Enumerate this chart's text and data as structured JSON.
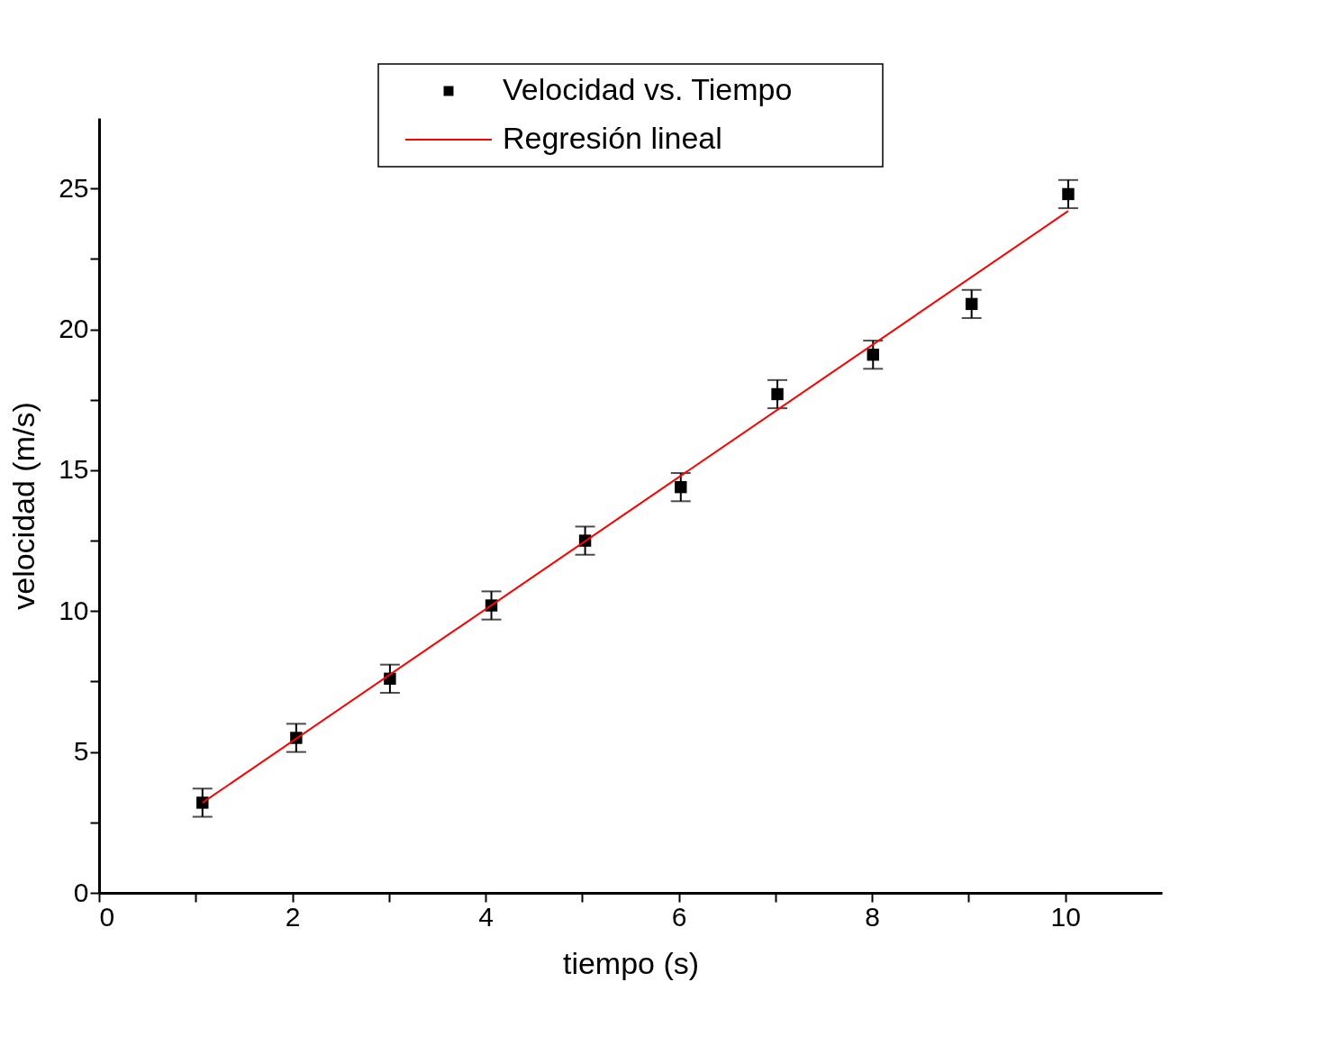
{
  "chart_data": {
    "type": "scatter",
    "xlabel": "tiempo (s)",
    "ylabel": "velocidad (m/s)",
    "xlim": [
      0,
      11
    ],
    "ylim": [
      0,
      27.5
    ],
    "xticks": [
      0,
      {
        "value": 1,
        "label": null
      },
      2,
      {
        "value": 3,
        "label": null
      },
      4,
      {
        "value": 5,
        "label": null
      },
      6,
      {
        "value": 7,
        "label": null
      },
      8,
      {
        "value": 9,
        "label": null
      },
      10
    ],
    "yticks": [
      0,
      {
        "value": 2.5,
        "label": null
      },
      5,
      {
        "value": 7.5,
        "label": null
      },
      10,
      {
        "value": 12.5,
        "label": null
      },
      15,
      {
        "value": 17.5,
        "label": null
      },
      20,
      {
        "value": 22.5,
        "label": null
      },
      25
    ],
    "grid": false,
    "legend": "top",
    "marker": "square",
    "series": [
      {
        "name": "Velocidad vs. Tiempo",
        "type": "scatter",
        "color": "#000000",
        "x": [
          1.07,
          2.04,
          3.01,
          4.06,
          5.03,
          6.02,
          7.02,
          8.01,
          9.03,
          10.03
        ],
        "values": [
          3.2,
          5.5,
          7.6,
          10.2,
          12.5,
          14.4,
          17.7,
          19.1,
          20.9,
          24.8
        ],
        "errors": [
          0.5,
          0.5,
          0.5,
          0.5,
          0.5,
          0.5,
          0.5,
          0.5,
          0.5,
          0.5
        ]
      },
      {
        "name": "Regresión lineal",
        "type": "line",
        "color": "#ff0000",
        "x": [
          1.07,
          10.03
        ],
        "values": [
          3.2,
          24.2
        ],
        "line_style": "solid",
        "marker": "none"
      }
    ]
  }
}
